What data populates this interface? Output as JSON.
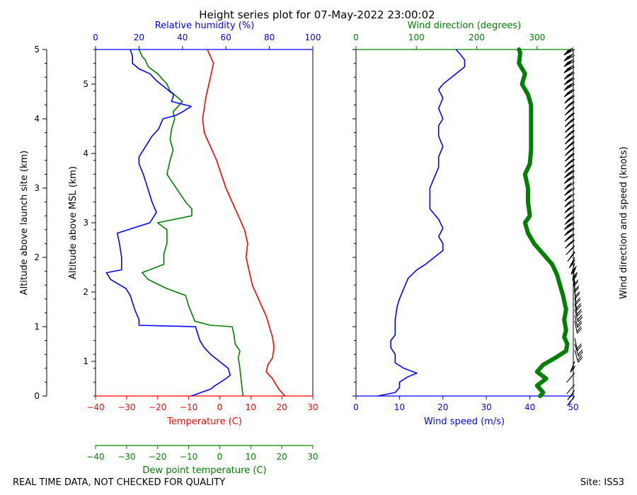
{
  "title": "Height series plot for 07-May-2022 23:00:02",
  "footer": {
    "left": "REAL TIME DATA, NOT CHECKED FOR QUALITY",
    "right": "Site: ISS3"
  },
  "colors": {
    "temperature": "#ff0000",
    "dewpoint": "#008000",
    "humidity": "#0000ff",
    "wind_speed": "#0000ff",
    "wind_direction": "#008000",
    "barbs": "#000000"
  },
  "chart_data": [
    {
      "type": "line",
      "name": "thermo-panel",
      "y_left_label": "Altitude above launch site (km)",
      "y_left_ticks": [
        "0",
        "1",
        "2",
        "3",
        "4",
        "5"
      ],
      "y_left_range_km": [
        0,
        5
      ],
      "y_inner_label": "Altitude above MSL (km)",
      "y_inner_ticks": [
        "1",
        "2",
        "3",
        "4",
        "5"
      ],
      "y_inner_range_km": [
        0.5,
        5.5
      ],
      "x_bottom": {
        "label": "Temperature (C)",
        "range": [
          -40,
          30
        ],
        "ticks": [
          "−40",
          "−30",
          "−20",
          "−10",
          "0",
          "10",
          "20",
          "30"
        ]
      },
      "x_dewpoint": {
        "label": "Dew point temperature (C)",
        "range": [
          -40,
          30
        ],
        "ticks": [
          "−40",
          "−30",
          "−20",
          "−10",
          "0",
          "10",
          "20",
          "30"
        ]
      },
      "x_top": {
        "label": "Relative humidity (%)",
        "range": [
          0,
          100
        ],
        "ticks": [
          "0",
          "20",
          "40",
          "60",
          "80",
          "100"
        ]
      },
      "series": [
        {
          "name": "Temperature",
          "axis": "temperature",
          "points": [
            [
              21,
              0
            ],
            [
              19,
              0.1
            ],
            [
              17,
              0.25
            ],
            [
              15,
              0.35
            ],
            [
              15.5,
              0.45
            ],
            [
              17,
              0.55
            ],
            [
              17.5,
              0.7
            ],
            [
              17,
              0.85
            ],
            [
              16,
              1.0
            ],
            [
              15,
              1.15
            ],
            [
              13,
              1.35
            ],
            [
              10.5,
              1.6
            ],
            [
              9.5,
              1.8
            ],
            [
              8.5,
              2.0
            ],
            [
              9,
              2.2
            ],
            [
              8,
              2.4
            ],
            [
              6,
              2.6
            ],
            [
              2,
              3.0
            ],
            [
              0.5,
              3.2
            ],
            [
              -1,
              3.4
            ],
            [
              -3,
              3.6
            ],
            [
              -5,
              3.8
            ],
            [
              -5.5,
              4.0
            ],
            [
              -4.5,
              4.3
            ],
            [
              -3.5,
              4.5
            ],
            [
              -2,
              4.8
            ],
            [
              -3,
              4.9
            ],
            [
              -4,
              5.0
            ]
          ]
        },
        {
          "name": "Dew point",
          "axis": "dewpoint",
          "points": [
            [
              7.5,
              0
            ],
            [
              7,
              0.2
            ],
            [
              6.5,
              0.4
            ],
            [
              6,
              0.55
            ],
            [
              6.5,
              0.65
            ],
            [
              5,
              0.75
            ],
            [
              4.5,
              0.9
            ],
            [
              4,
              1.0
            ],
            [
              -3,
              1.02
            ],
            [
              -8,
              1.08
            ],
            [
              -10,
              1.3
            ],
            [
              -11,
              1.45
            ],
            [
              -17,
              1.55
            ],
            [
              -23,
              1.68
            ],
            [
              -25,
              1.78
            ],
            [
              -18,
              1.9
            ],
            [
              -18,
              2.05
            ],
            [
              -17,
              2.2
            ],
            [
              -17,
              2.4
            ],
            [
              -20,
              2.5
            ],
            [
              -9,
              2.6
            ],
            [
              -9,
              2.7
            ],
            [
              -11,
              2.8
            ],
            [
              -14,
              3.0
            ],
            [
              -17,
              3.2
            ],
            [
              -16,
              3.4
            ],
            [
              -15,
              3.55
            ],
            [
              -16,
              3.7
            ],
            [
              -15.5,
              3.85
            ],
            [
              -14.5,
              4.0
            ],
            [
              -15,
              4.1
            ],
            [
              -12,
              4.25
            ],
            [
              -16,
              4.4
            ],
            [
              -17,
              4.5
            ],
            [
              -20,
              4.65
            ],
            [
              -23,
              4.75
            ],
            [
              -24,
              4.85
            ],
            [
              -25,
              4.9
            ],
            [
              -26,
              5.0
            ]
          ]
        },
        {
          "name": "Relative humidity",
          "axis": "humidity",
          "points": [
            [
              44,
              0
            ],
            [
              53,
              0.1
            ],
            [
              55,
              0.15
            ],
            [
              60,
              0.25
            ],
            [
              62,
              0.3
            ],
            [
              61,
              0.4
            ],
            [
              57,
              0.5
            ],
            [
              53,
              0.6
            ],
            [
              50,
              0.7
            ],
            [
              48,
              0.8
            ],
            [
              47,
              0.9
            ],
            [
              46,
              1.0
            ],
            [
              20,
              1.02
            ],
            [
              20,
              1.1
            ],
            [
              18,
              1.25
            ],
            [
              16,
              1.45
            ],
            [
              14,
              1.55
            ],
            [
              7,
              1.68
            ],
            [
              5,
              1.78
            ],
            [
              12,
              1.82
            ],
            [
              12,
              2.0
            ],
            [
              11,
              2.2
            ],
            [
              10,
              2.35
            ],
            [
              20,
              2.45
            ],
            [
              25,
              2.5
            ],
            [
              28,
              2.65
            ],
            [
              26,
              2.8
            ],
            [
              24,
              3.0
            ],
            [
              22,
              3.2
            ],
            [
              20,
              3.35
            ],
            [
              20,
              3.45
            ],
            [
              23,
              3.6
            ],
            [
              26,
              3.75
            ],
            [
              29,
              3.85
            ],
            [
              31,
              4.0
            ],
            [
              37,
              4.05
            ],
            [
              40,
              4.1
            ],
            [
              44,
              4.18
            ],
            [
              35,
              4.25
            ],
            [
              36,
              4.35
            ],
            [
              32,
              4.45
            ],
            [
              28,
              4.55
            ],
            [
              25,
              4.65
            ],
            [
              20,
              4.72
            ],
            [
              17,
              4.8
            ],
            [
              17,
              4.9
            ],
            [
              16,
              5.0
            ]
          ]
        }
      ]
    },
    {
      "type": "line",
      "name": "wind-panel",
      "y_range_km": [
        0,
        5
      ],
      "x_bottom": {
        "label": "Wind speed (m/s)",
        "range": [
          0,
          50
        ],
        "ticks": [
          "0",
          "10",
          "20",
          "30",
          "40",
          "50"
        ]
      },
      "x_top": {
        "label": "Wind direction (degrees)",
        "range": [
          0,
          360
        ],
        "ticks": [
          "0",
          "100",
          "200",
          "300"
        ]
      },
      "right_label": "Wind direction and speed (knots)",
      "series": [
        {
          "name": "Wind speed",
          "axis": "speed",
          "points": [
            [
              5,
              0
            ],
            [
              9,
              0.05
            ],
            [
              10,
              0.12
            ],
            [
              10,
              0.2
            ],
            [
              12,
              0.28
            ],
            [
              14,
              0.33
            ],
            [
              11,
              0.4
            ],
            [
              9,
              0.48
            ],
            [
              9,
              0.6
            ],
            [
              8,
              0.7
            ],
            [
              8,
              0.8
            ],
            [
              9,
              0.88
            ],
            [
              9,
              1.0
            ],
            [
              9,
              1.1
            ],
            [
              9.5,
              1.3
            ],
            [
              10,
              1.4
            ],
            [
              11,
              1.55
            ],
            [
              12,
              1.7
            ],
            [
              14,
              1.82
            ],
            [
              16,
              1.9
            ],
            [
              18,
              2.0
            ],
            [
              20,
              2.1
            ],
            [
              20,
              2.2
            ],
            [
              19,
              2.3
            ],
            [
              20,
              2.42
            ],
            [
              19,
              2.55
            ],
            [
              17,
              2.7
            ],
            [
              17,
              2.85
            ],
            [
              17,
              3.0
            ],
            [
              18,
              3.15
            ],
            [
              19,
              3.3
            ],
            [
              19,
              3.45
            ],
            [
              20,
              3.6
            ],
            [
              19,
              3.75
            ],
            [
              19,
              3.9
            ],
            [
              20,
              4.0
            ],
            [
              19,
              4.15
            ],
            [
              20,
              4.3
            ],
            [
              19,
              4.42
            ],
            [
              20,
              4.5
            ],
            [
              22,
              4.6
            ],
            [
              25,
              4.75
            ],
            [
              25,
              4.85
            ],
            [
              24,
              4.93
            ],
            [
              23,
              5.0
            ]
          ]
        },
        {
          "name": "Wind direction",
          "axis": "direction",
          "points": [
            [
              305,
              0
            ],
            [
              310,
              0.05
            ],
            [
              300,
              0.15
            ],
            [
              315,
              0.25
            ],
            [
              300,
              0.35
            ],
            [
              310,
              0.45
            ],
            [
              330,
              0.55
            ],
            [
              348,
              0.65
            ],
            [
              350,
              0.75
            ],
            [
              345,
              0.85
            ],
            [
              348,
              0.95
            ],
            [
              345,
              1.1
            ],
            [
              348,
              1.25
            ],
            [
              343,
              1.45
            ],
            [
              338,
              1.6
            ],
            [
              333,
              1.75
            ],
            [
              325,
              1.9
            ],
            [
              310,
              2.05
            ],
            [
              295,
              2.2
            ],
            [
              285,
              2.35
            ],
            [
              280,
              2.5
            ],
            [
              288,
              2.6
            ],
            [
              285,
              2.8
            ],
            [
              285,
              3.0
            ],
            [
              280,
              3.2
            ],
            [
              288,
              3.35
            ],
            [
              290,
              3.55
            ],
            [
              290,
              3.8
            ],
            [
              290,
              4.0
            ],
            [
              290,
              4.2
            ],
            [
              285,
              4.35
            ],
            [
              275,
              4.5
            ],
            [
              280,
              4.65
            ],
            [
              270,
              4.8
            ],
            [
              272,
              4.95
            ],
            [
              270,
              5.0
            ]
          ]
        }
      ]
    }
  ]
}
